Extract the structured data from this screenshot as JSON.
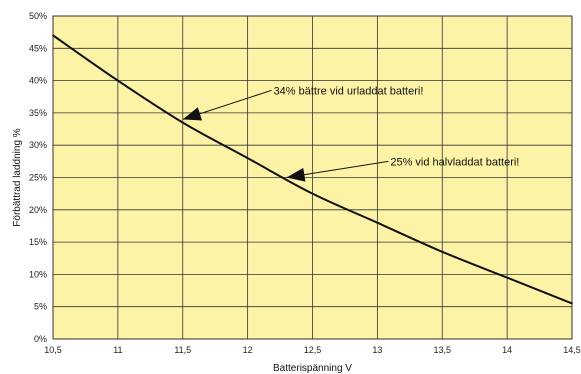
{
  "colors": {
    "plot_background": "#fdf3a6",
    "grid": "#333333",
    "curve": "#111111",
    "page_background": "#ffffff"
  },
  "chart_data": {
    "type": "line",
    "title": "",
    "xlabel": "Batterispänning V",
    "ylabel": "Förbättrad laddning %",
    "xlim": [
      10.5,
      14.5
    ],
    "ylim": [
      0,
      50
    ],
    "x_ticks": [
      10.5,
      11,
      11.5,
      12,
      12.5,
      13,
      13.5,
      14,
      14.5
    ],
    "x_tick_labels": [
      "10,5",
      "11",
      "11,5",
      "12",
      "12,5",
      "13",
      "13,5",
      "14",
      "14,5"
    ],
    "y_ticks": [
      0,
      5,
      10,
      15,
      20,
      25,
      30,
      35,
      40,
      45,
      50
    ],
    "y_tick_labels": [
      "0%",
      "5%",
      "10%",
      "15%",
      "20%",
      "25%",
      "30%",
      "35%",
      "40%",
      "45%",
      "50%"
    ],
    "grid": true,
    "series": [
      {
        "x": [
          10.5,
          11,
          11.5,
          12,
          12.5,
          13,
          13.5,
          14,
          14.5
        ],
        "values": [
          47,
          40,
          33.5,
          28,
          22.5,
          18,
          13.5,
          9.5,
          5.5
        ]
      }
    ],
    "annotations": [
      {
        "text": "34% bättre vid urladdat batteri!",
        "x": 11.5,
        "y": 34,
        "text_x": 12.2,
        "text_y": 38.5
      },
      {
        "text": "25% vid halvladdat batteri!",
        "x": 12.3,
        "y": 25,
        "text_x": 13.1,
        "text_y": 27.5
      }
    ]
  }
}
